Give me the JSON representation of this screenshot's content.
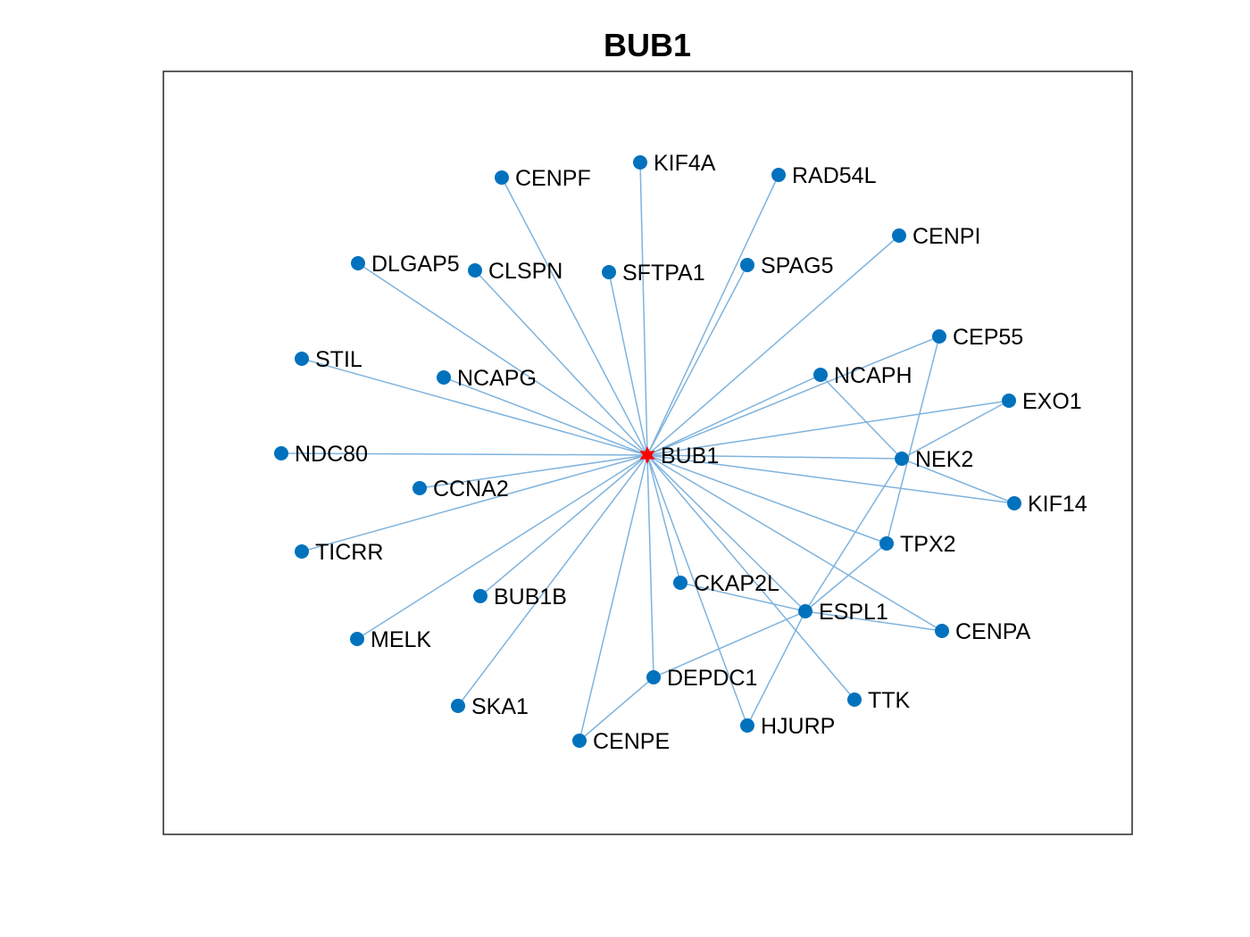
{
  "title": "BUB1",
  "colors": {
    "edge": "#7fb3dd",
    "node": "#0072bd",
    "center": "#ff0000",
    "frame": "#262626"
  },
  "center_node": "BUB1",
  "nodes": [
    "BUB1",
    "KIF4A",
    "CENPF",
    "RAD54L",
    "CENPI",
    "DLGAP5",
    "CLSPN",
    "SFTPA1",
    "SPAG5",
    "CEP55",
    "STIL",
    "NCAPG",
    "NCAPH",
    "EXO1",
    "NDC80",
    "NEK2",
    "CCNA2",
    "KIF14",
    "TICRR",
    "TPX2",
    "CKAP2L",
    "BUB1B",
    "ESPL1",
    "CENPA",
    "MELK",
    "DEPDC1",
    "TTK",
    "SKA1",
    "HJURP",
    "CENPE"
  ],
  "edges": [
    [
      "BUB1",
      "KIF4A"
    ],
    [
      "BUB1",
      "CENPF"
    ],
    [
      "BUB1",
      "RAD54L"
    ],
    [
      "BUB1",
      "CENPI"
    ],
    [
      "BUB1",
      "DLGAP5"
    ],
    [
      "BUB1",
      "CLSPN"
    ],
    [
      "BUB1",
      "SFTPA1"
    ],
    [
      "BUB1",
      "SPAG5"
    ],
    [
      "BUB1",
      "CEP55"
    ],
    [
      "BUB1",
      "STIL"
    ],
    [
      "BUB1",
      "NCAPG"
    ],
    [
      "BUB1",
      "NCAPH"
    ],
    [
      "BUB1",
      "EXO1"
    ],
    [
      "BUB1",
      "NDC80"
    ],
    [
      "BUB1",
      "NEK2"
    ],
    [
      "BUB1",
      "CCNA2"
    ],
    [
      "BUB1",
      "KIF14"
    ],
    [
      "BUB1",
      "TICRR"
    ],
    [
      "BUB1",
      "TPX2"
    ],
    [
      "BUB1",
      "CKAP2L"
    ],
    [
      "BUB1",
      "BUB1B"
    ],
    [
      "BUB1",
      "ESPL1"
    ],
    [
      "BUB1",
      "CENPA"
    ],
    [
      "BUB1",
      "MELK"
    ],
    [
      "BUB1",
      "DEPDC1"
    ],
    [
      "BUB1",
      "TTK"
    ],
    [
      "BUB1",
      "SKA1"
    ],
    [
      "BUB1",
      "HJURP"
    ],
    [
      "BUB1",
      "CENPE"
    ],
    [
      "NCAPH",
      "NEK2"
    ],
    [
      "CEP55",
      "TPX2"
    ],
    [
      "EXO1",
      "NEK2"
    ],
    [
      "NEK2",
      "KIF14"
    ],
    [
      "NEK2",
      "ESPL1"
    ],
    [
      "TPX2",
      "ESPL1"
    ],
    [
      "CKAP2L",
      "ESPL1"
    ],
    [
      "ESPL1",
      "CENPA"
    ],
    [
      "ESPL1",
      "DEPDC1"
    ],
    [
      "ESPL1",
      "HJURP"
    ],
    [
      "DEPDC1",
      "CENPE"
    ]
  ]
}
